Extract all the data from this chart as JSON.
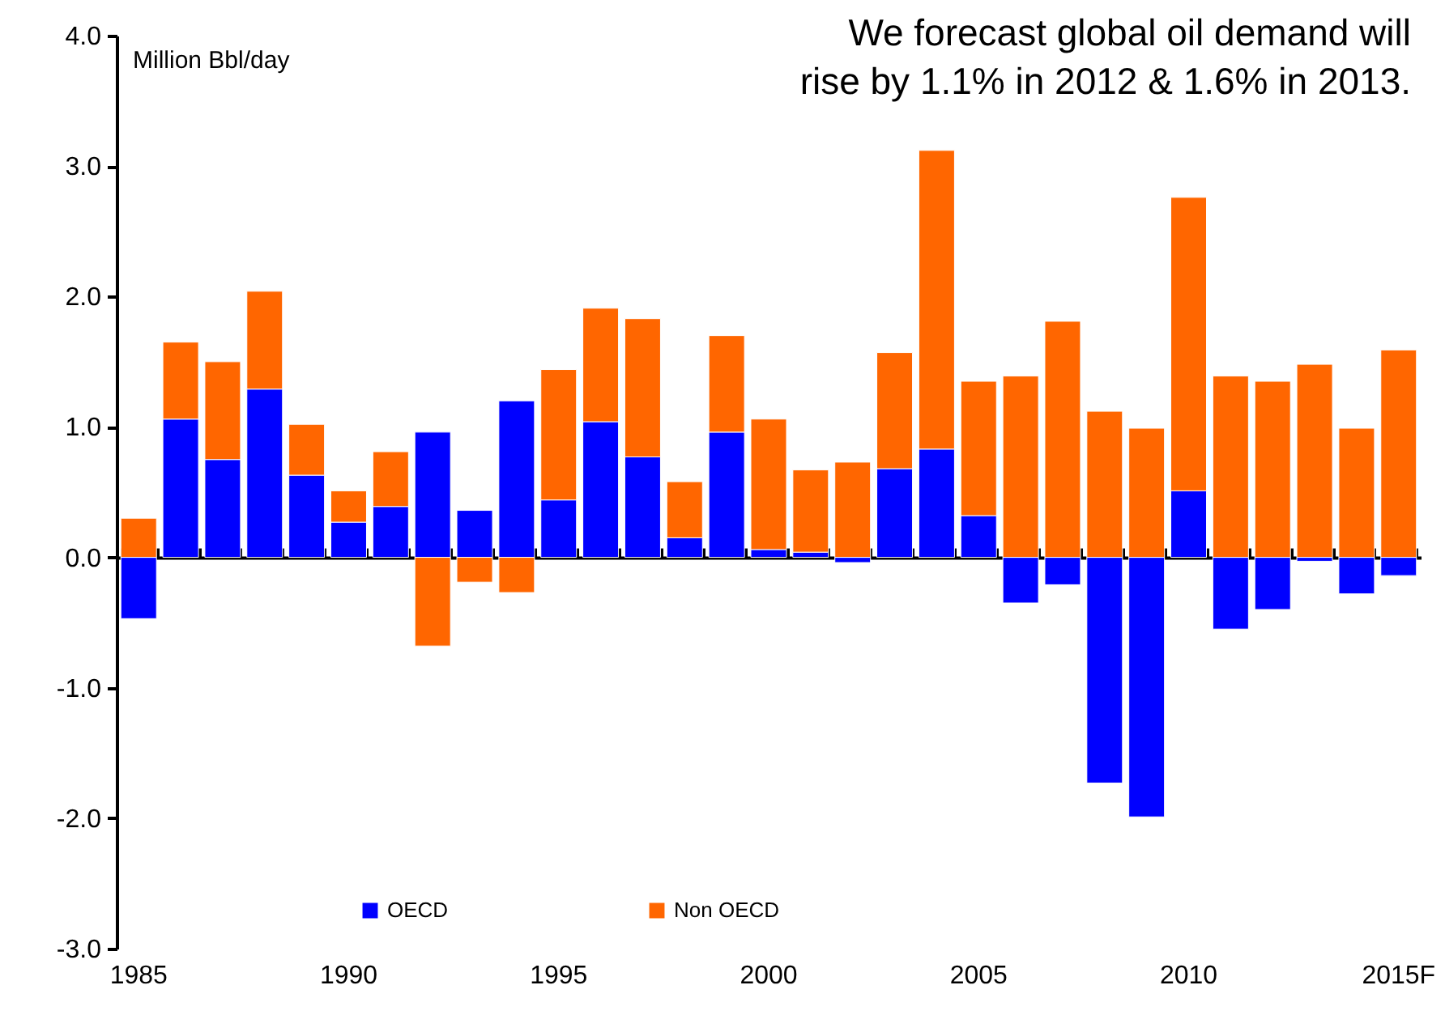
{
  "chart_data": {
    "type": "bar",
    "stacked": true,
    "title": "We forecast global oil demand will rise by 1.1% in 2012 & 1.6% in 2013.",
    "ylabel": "Million Bbl/day",
    "categories": [
      "1985",
      null,
      null,
      null,
      null,
      "1990",
      null,
      null,
      null,
      null,
      "1995",
      null,
      null,
      null,
      null,
      "2000",
      null,
      null,
      null,
      null,
      "2005",
      null,
      null,
      null,
      null,
      "2010",
      null,
      null,
      null,
      null,
      "2015F"
    ],
    "series": [
      {
        "name": "OECD",
        "color": "#0000ff",
        "values": [
          -0.47,
          1.06,
          0.75,
          1.29,
          0.63,
          0.27,
          0.39,
          0.96,
          0.36,
          1.2,
          0.44,
          1.04,
          0.77,
          0.15,
          0.96,
          0.06,
          0.04,
          -0.04,
          0.68,
          0.83,
          0.32,
          -0.35,
          -0.21,
          -1.73,
          -1.99,
          0.51,
          -0.55,
          -0.4,
          -0.03,
          -0.28,
          -0.14
        ]
      },
      {
        "name": "Non OECD",
        "color": "#ff6600",
        "values": [
          0.3,
          0.59,
          0.75,
          0.75,
          0.39,
          0.24,
          0.42,
          -0.68,
          -0.19,
          -0.27,
          1.0,
          0.87,
          1.06,
          0.43,
          0.74,
          1.0,
          0.63,
          0.73,
          0.89,
          2.29,
          1.03,
          1.39,
          1.81,
          1.12,
          0.99,
          2.25,
          1.39,
          1.35,
          1.48,
          0.99,
          1.59
        ]
      }
    ],
    "ylim": [
      -3.0,
      4.0
    ],
    "yticks": [
      {
        "value": -3,
        "label": "-3.0"
      },
      {
        "value": -2,
        "label": "-2.0"
      },
      {
        "value": -1,
        "label": "-1.0"
      },
      {
        "value": 0,
        "label": "0.0"
      },
      {
        "value": 1,
        "label": "1.0"
      },
      {
        "value": 2,
        "label": "2.0"
      },
      {
        "value": 3,
        "label": "3.0"
      },
      {
        "value": 4,
        "label": "4.0"
      }
    ],
    "legend": "bottom"
  }
}
